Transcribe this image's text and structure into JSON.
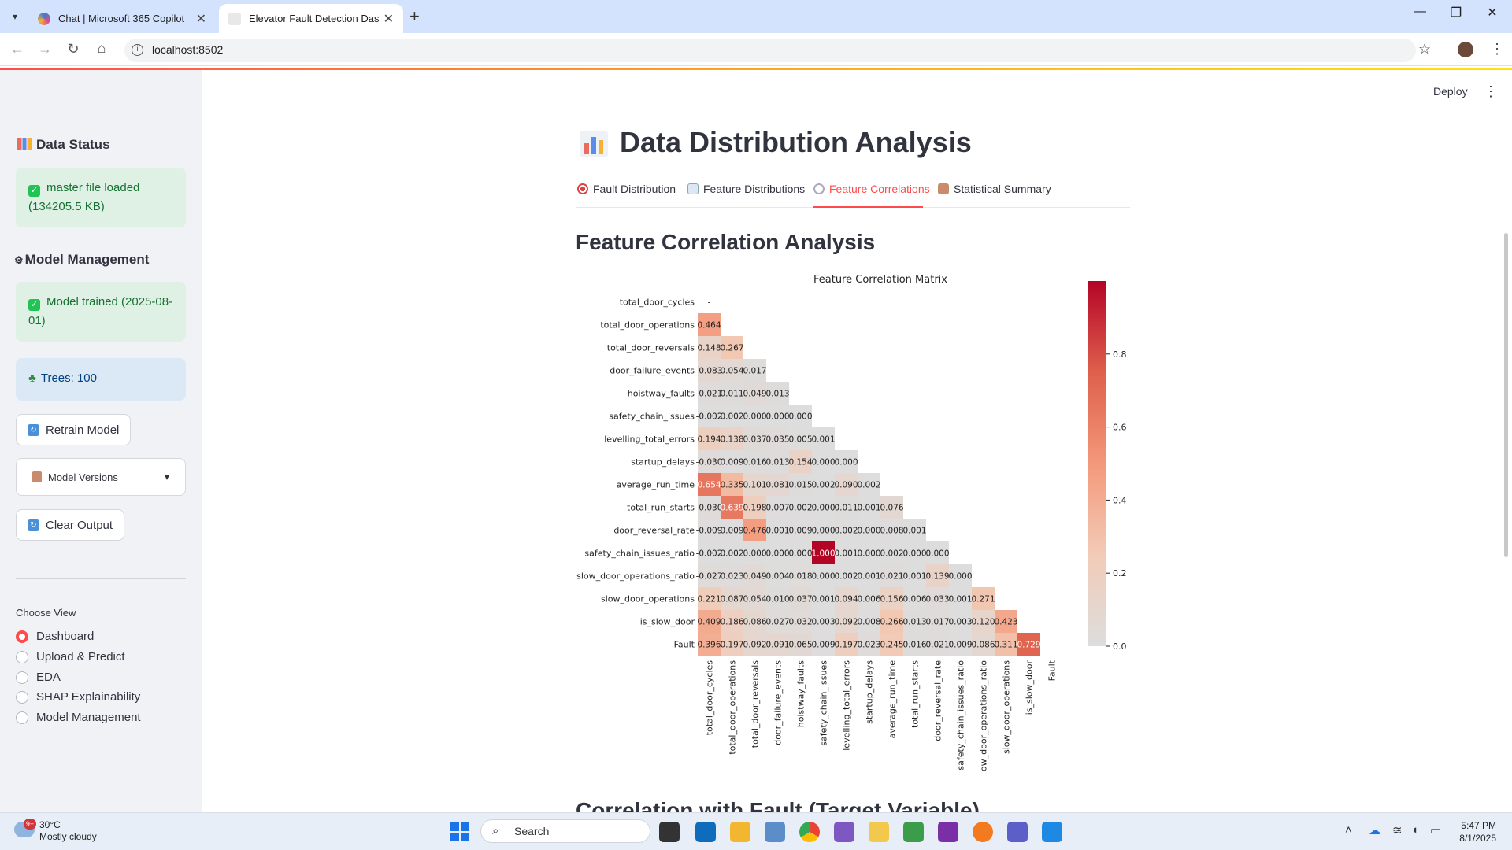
{
  "browser": {
    "tabs": [
      {
        "title": "Chat | Microsoft 365 Copilot",
        "active": false
      },
      {
        "title": "Elevator Fault Detection Dashbo",
        "active": true
      }
    ],
    "url": "localhost:8502"
  },
  "sidebar": {
    "data_status_title": "Data Status",
    "data_status_msg": "master file loaded (134205.5 KB)",
    "model_mgmt_title": "Model Management",
    "model_trained_msg": "Model trained (2025-08-01)",
    "trees_msg": "Trees: 100",
    "retrain_label": "Retrain Model",
    "versions_label": "Model Versions",
    "clear_label": "Clear Output",
    "choose_view_label": "Choose View",
    "views": [
      "Dashboard",
      "Upload & Predict",
      "EDA",
      "SHAP Explainability",
      "Model Management"
    ],
    "selected_view": "Dashboard"
  },
  "header": {
    "deploy_label": "Deploy"
  },
  "main": {
    "title": "Data Distribution Analysis",
    "tabs": [
      "Fault Distribution",
      "Feature Distributions",
      "Feature Correlations",
      "Statistical Summary"
    ],
    "selected_tab": "Feature Correlations",
    "section_title": "Feature Correlation Analysis",
    "next_section_title": "Correlation with Fault (Target Variable)"
  },
  "chart_data": {
    "type": "heatmap",
    "title": "Feature Correlation Matrix",
    "variables": [
      "total_door_cycles",
      "total_door_operations",
      "total_door_reversals",
      "door_failure_events",
      "hoistway_faults",
      "safety_chain_issues",
      "levelling_total_errors",
      "startup_delays",
      "average_run_time",
      "total_run_starts",
      "door_reversal_rate",
      "safety_chain_issues_ratio",
      "slow_door_operations_ratio",
      "slow_door_operations",
      "is_slow_door",
      "Fault"
    ],
    "cells": [
      [
        "-"
      ],
      [
        "0.464"
      ],
      [
        "0.148",
        "0.267"
      ],
      [
        "-0.083",
        "0.054",
        "0.017"
      ],
      [
        "-0.021",
        "0.011",
        "0.049",
        "0.013"
      ],
      [
        "-0.002",
        "0.002",
        "0.000",
        "0.000",
        "0.000"
      ],
      [
        "0.194",
        "0.138",
        "0.037",
        "0.035",
        "0.005",
        "0.001"
      ],
      [
        "-0.030",
        "0.009",
        "0.016",
        "0.013",
        "0.154",
        "0.000",
        "0.000"
      ],
      [
        "0.654",
        "0.335",
        "0.101",
        "0.081",
        "0.015",
        "0.002",
        "0.090",
        "0.002"
      ],
      [
        "-0.030",
        "0.639",
        "0.198",
        "0.007",
        "0.002",
        "0.000",
        "0.011",
        "0.001",
        "0.076"
      ],
      [
        "-0.009",
        "0.009",
        "0.476",
        "0.001",
        "0.009",
        "0.000",
        "0.002",
        "0.000",
        "0.008",
        "0.001"
      ],
      [
        "-0.002",
        "0.002",
        "0.000",
        "0.000",
        "0.000",
        "1.000",
        "0.001",
        "0.000",
        "0.002",
        "0.000",
        "0.000"
      ],
      [
        "-0.027",
        "0.023",
        "0.049",
        "0.004",
        "0.018",
        "0.000",
        "0.002",
        "0.001",
        "0.021",
        "0.001",
        "0.139",
        "0.000"
      ],
      [
        "0.221",
        "0.087",
        "0.054",
        "0.010",
        "0.037",
        "0.001",
        "0.094",
        "0.006",
        "0.156",
        "0.006",
        "0.033",
        "0.001",
        "0.271"
      ],
      [
        "0.409",
        "0.186",
        "0.086",
        "0.027",
        "0.032",
        "0.003",
        "0.092",
        "0.008",
        "0.266",
        "0.013",
        "0.017",
        "0.003",
        "0.120",
        "0.423"
      ],
      [
        "0.396",
        "0.197",
        "0.092",
        "0.091",
        "0.065",
        "0.009",
        "0.197",
        "0.023",
        "0.245",
        "0.016",
        "0.021",
        "0.009",
        "0.086",
        "0.311",
        "0.729"
      ]
    ],
    "colorbar": {
      "min": 0.0,
      "max": 1.0,
      "ticks": [
        "0.0",
        "0.2",
        "0.4",
        "0.6",
        "0.8"
      ],
      "colormap": "coolwarm-reds"
    }
  },
  "taskbar": {
    "weather_temp": "30°C",
    "weather_desc": "Mostly cloudy",
    "weather_badge": "9+",
    "search_placeholder": "Search",
    "time": "5:47 PM",
    "date": "8/1/2025"
  },
  "colors": {
    "accent": "#ff4b4b",
    "success_bg": "#dff0e4",
    "info_bg": "#dbe8f6"
  }
}
